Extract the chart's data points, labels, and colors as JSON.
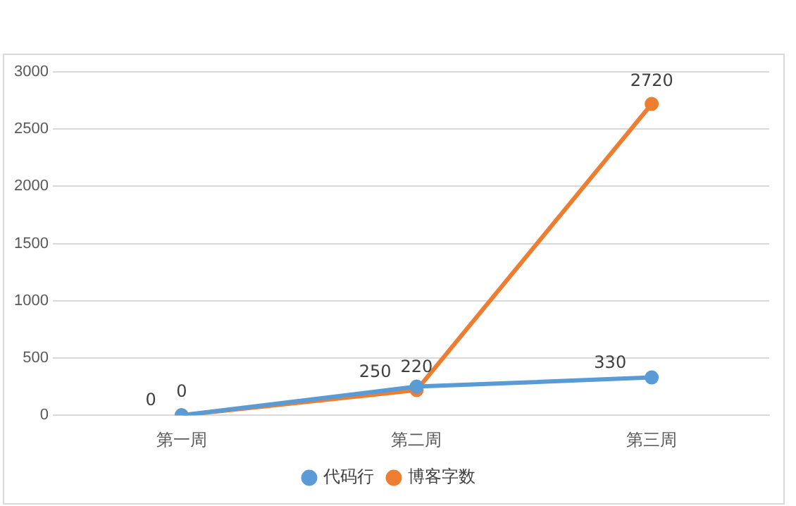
{
  "chart_data": {
    "type": "line",
    "categories": [
      "第一周",
      "第二周",
      "第三周"
    ],
    "series": [
      {
        "name": "代码行",
        "color": "#5b9bd5",
        "values": [
          0,
          250,
          330
        ]
      },
      {
        "name": "博客字数",
        "color": "#ed7d31",
        "values": [
          0,
          220,
          2720
        ]
      }
    ],
    "ylim": [
      0,
      3000
    ],
    "yticks": [
      0,
      500,
      1000,
      1500,
      2000,
      2500,
      3000
    ],
    "grid": "y",
    "legend": "bottom",
    "marker": "circle",
    "line_style": "solid",
    "data_labels": true
  }
}
